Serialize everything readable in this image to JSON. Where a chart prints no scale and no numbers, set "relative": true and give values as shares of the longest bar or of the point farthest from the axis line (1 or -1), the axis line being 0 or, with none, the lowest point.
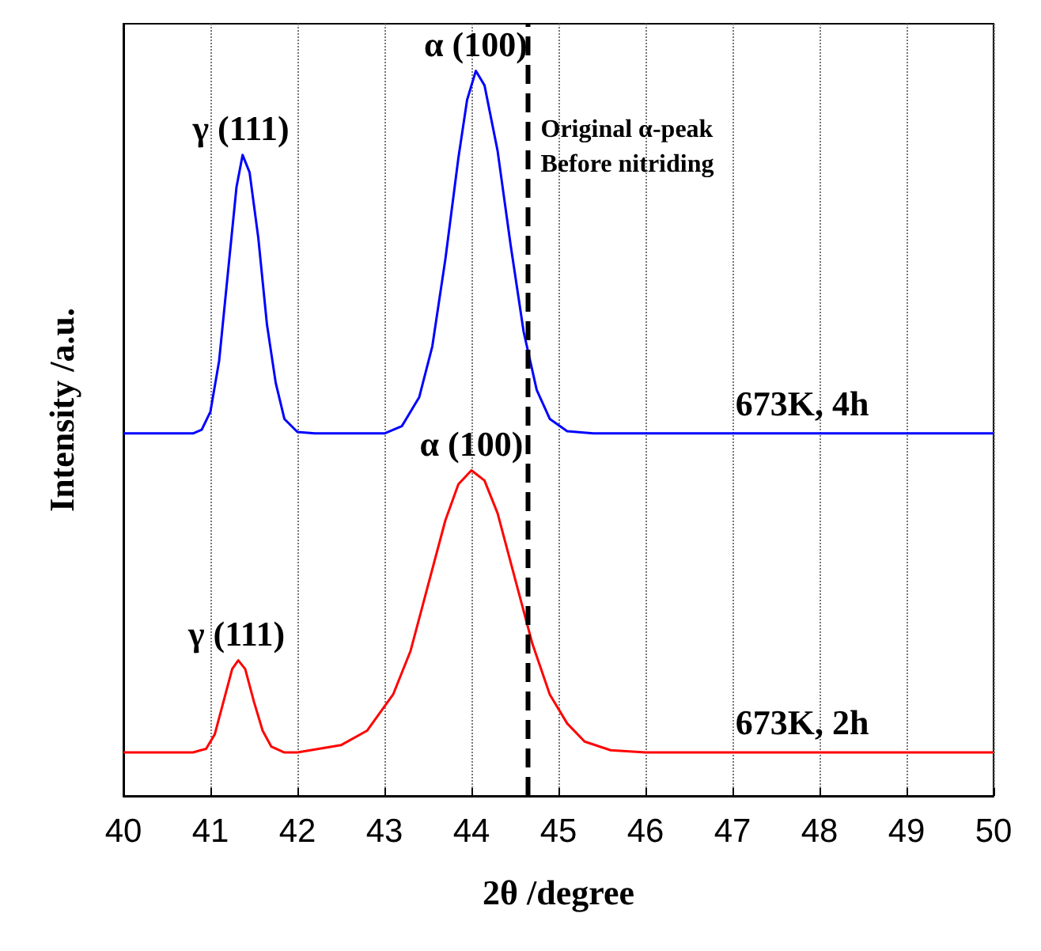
{
  "chart_data": {
    "type": "line",
    "xlabel": "2θ /degree",
    "ylabel": "Intensity /a.u.",
    "relative": true,
    "xlim": [
      40,
      50
    ],
    "xticks": [
      40,
      41,
      42,
      43,
      44,
      45,
      46,
      47,
      48,
      49,
      50
    ],
    "grid": "x",
    "series": [
      {
        "name": "673K, 4h",
        "color": "#0000ff",
        "x": [
          40,
          40.8,
          40.9,
          41.0,
          41.1,
          41.2,
          41.3,
          41.37,
          41.45,
          41.55,
          41.65,
          41.75,
          41.85,
          42.0,
          42.2,
          43.0,
          43.2,
          43.4,
          43.55,
          43.7,
          43.85,
          43.95,
          44.05,
          44.15,
          44.3,
          44.45,
          44.6,
          44.75,
          44.9,
          45.1,
          45.4,
          50
        ],
        "values": [
          0.5,
          0.5,
          0.505,
          0.53,
          0.6,
          0.72,
          0.84,
          0.884,
          0.86,
          0.77,
          0.65,
          0.57,
          0.52,
          0.502,
          0.5,
          0.5,
          0.51,
          0.55,
          0.62,
          0.74,
          0.88,
          0.96,
          1.0,
          0.98,
          0.89,
          0.76,
          0.64,
          0.56,
          0.52,
          0.503,
          0.5,
          0.5
        ]
      },
      {
        "name": "673K, 2h",
        "color": "#ff0000",
        "x": [
          40,
          40.8,
          40.95,
          41.05,
          41.15,
          41.25,
          41.32,
          41.4,
          41.5,
          41.6,
          41.7,
          41.85,
          42.0,
          42.5,
          42.8,
          43.1,
          43.3,
          43.5,
          43.7,
          43.85,
          44.0,
          44.15,
          44.3,
          44.5,
          44.7,
          44.9,
          45.1,
          45.3,
          45.6,
          46,
          50
        ],
        "values": [
          0.06,
          0.06,
          0.065,
          0.085,
          0.13,
          0.175,
          0.187,
          0.175,
          0.13,
          0.09,
          0.068,
          0.06,
          0.06,
          0.07,
          0.09,
          0.14,
          0.2,
          0.29,
          0.38,
          0.43,
          0.449,
          0.435,
          0.39,
          0.3,
          0.21,
          0.14,
          0.1,
          0.075,
          0.063,
          0.06,
          0.06
        ]
      }
    ],
    "ref_lines": [
      {
        "axis": "x",
        "value": 44.65,
        "label": "Original α-peak\nBefore nitriding",
        "color": "#000000",
        "line_style": "dashed"
      }
    ],
    "annotations": [
      {
        "text": "γ (111)",
        "x": 41.35,
        "y": 0.884
      },
      {
        "text": "α (100)",
        "x": 44.05,
        "y": 1.0
      },
      {
        "text": "α (100)",
        "x": 44.0,
        "y": 0.449
      },
      {
        "text": "γ (111)",
        "x": 41.3,
        "y": 0.187
      }
    ]
  }
}
